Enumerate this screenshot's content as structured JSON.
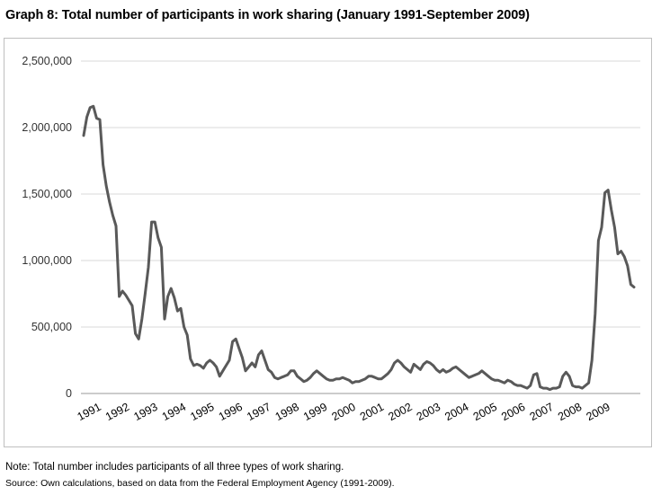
{
  "title": "Graph 8: Total number of participants in work sharing (January 1991-September 2009)",
  "note": "Note: Total number includes participants of all three types of work sharing.",
  "source": "Source: Own calculations, based on data from the Federal Employment Agency (1991-2009).",
  "chart_data": {
    "type": "line",
    "title": "Graph 8: Total number of participants in work sharing (January 1991-September 2009)",
    "xlabel": "",
    "ylabel": "",
    "ylim": [
      0,
      2500000
    ],
    "yticks": [
      "0",
      "500,000",
      "1,000,000",
      "1,500,000",
      "2,000,000",
      "2,500,000"
    ],
    "xticks": [
      "1991",
      "1992",
      "1993",
      "1994",
      "1995",
      "1996",
      "1997",
      "1998",
      "1999",
      "2000",
      "2001",
      "2002",
      "2003",
      "2004",
      "2005",
      "2006",
      "2007",
      "2008",
      "2009"
    ],
    "grid": "horizontal",
    "legend": "none",
    "line_color": "#595959",
    "series": [
      {
        "values": [
          1940000,
          2080000,
          2150000,
          2160000,
          2070000,
          2060000,
          1720000,
          1560000,
          1440000,
          1340000,
          1260000,
          730000,
          770000,
          740000,
          700000,
          660000,
          450000,
          410000,
          560000,
          750000,
          950000,
          1290000,
          1290000,
          1170000,
          1100000,
          560000,
          730000,
          790000,
          720000,
          620000,
          640000,
          500000,
          440000,
          260000,
          210000,
          220000,
          210000,
          190000,
          230000,
          250000,
          230000,
          200000,
          130000,
          170000,
          210000,
          250000,
          390000,
          410000,
          340000,
          270000,
          170000,
          200000,
          230000,
          200000,
          290000,
          320000,
          250000,
          180000,
          160000,
          120000,
          110000,
          120000,
          130000,
          140000,
          170000,
          170000,
          130000,
          110000,
          90000,
          100000,
          120000,
          150000,
          170000,
          150000,
          130000,
          110000,
          100000,
          100000,
          110000,
          110000,
          120000,
          110000,
          100000,
          80000,
          90000,
          90000,
          100000,
          110000,
          130000,
          130000,
          120000,
          110000,
          110000,
          130000,
          150000,
          180000,
          230000,
          250000,
          230000,
          200000,
          180000,
          160000,
          220000,
          200000,
          180000,
          220000,
          240000,
          230000,
          210000,
          180000,
          160000,
          180000,
          160000,
          170000,
          190000,
          200000,
          180000,
          160000,
          140000,
          120000,
          130000,
          140000,
          150000,
          170000,
          150000,
          130000,
          110000,
          100000,
          100000,
          90000,
          80000,
          100000,
          90000,
          70000,
          60000,
          60000,
          50000,
          40000,
          60000,
          140000,
          150000,
          50000,
          40000,
          40000,
          30000,
          40000,
          40000,
          50000,
          130000,
          160000,
          130000,
          60000,
          50000,
          50000,
          40000,
          60000,
          80000,
          250000,
          600000,
          1150000,
          1250000,
          1510000,
          1530000,
          1380000,
          1250000,
          1050000,
          1070000,
          1030000,
          960000,
          820000,
          800000
        ]
      }
    ]
  }
}
